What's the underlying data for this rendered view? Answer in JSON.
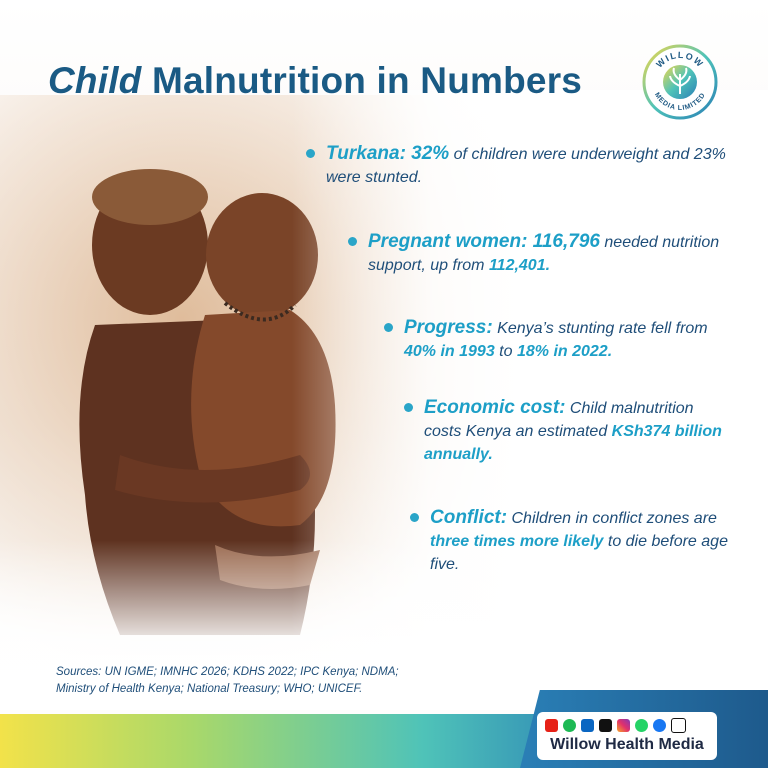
{
  "title": {
    "emphasis": "Child",
    "rest": "Malnutrition in Numbers"
  },
  "logo": {
    "top_text": "WILLOW",
    "bottom_text": "MEDIA LIMITED"
  },
  "facts": [
    {
      "label": "Turkana: 32%",
      "text1": " of children were underweight and 23% were stunted."
    },
    {
      "label": "Pregnant women: 116,796",
      "text1": " needed nutrition support, up from ",
      "highlight": "112,401."
    },
    {
      "label": "Progress:",
      "text1": " Kenya’s stunting rate fell from ",
      "highlight": "40% in 1993",
      "text2": " to ",
      "highlight2": "18% in 2022."
    },
    {
      "label": "Economic cost:",
      "text1": " Child malnutrition costs Kenya an estimated ",
      "highlight": "KSh374 billion annually."
    },
    {
      "label": "Conflict:",
      "text1": " Children in conflict zones are ",
      "highlight": "three times more likely",
      "text2": " to die before age five."
    }
  ],
  "sources": {
    "line1": "Sources: UN IGME; IMNHC 2026; KDHS 2022; IPC Kenya; NDMA;",
    "line2": "Ministry of Health Kenya; National Treasury; WHO; UNICEF."
  },
  "footer": {
    "brand": "Willow Health Media",
    "social_icons": [
      "youtube-icon",
      "spotify-icon",
      "linkedin-icon",
      "tiktok-icon",
      "instagram-icon",
      "whatsapp-icon",
      "facebook-icon",
      "x-icon"
    ]
  },
  "colors": {
    "title": "#1a5a84",
    "accent": "#1d9fc7",
    "body": "#1f4e79"
  }
}
